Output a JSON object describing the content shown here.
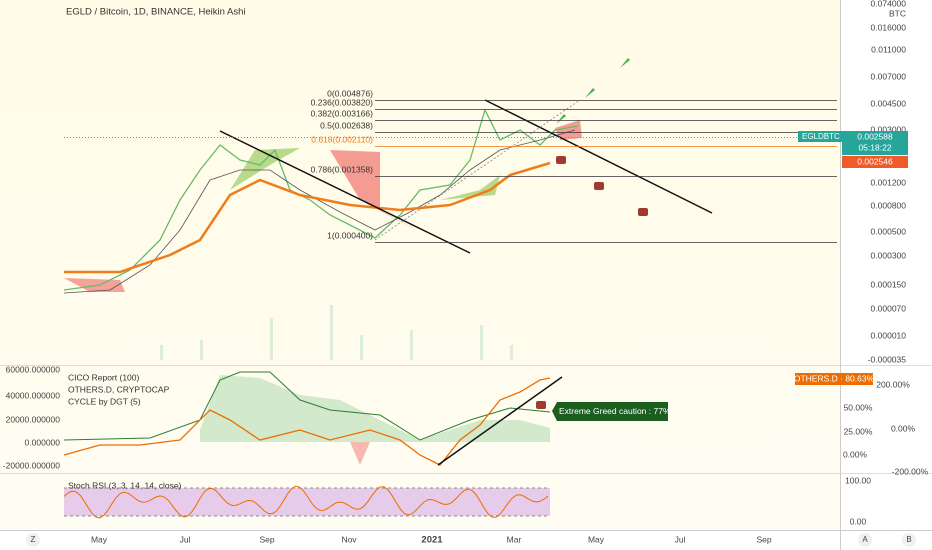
{
  "header": {
    "title": "EGLD / Bitcoin, 1D, BINANCE, Heikin Ashi"
  },
  "price_axis": {
    "labels": [
      "0.074000",
      "BTC",
      "0.016000",
      "0.011000",
      "0.007000",
      "0.004500",
      "0.003000",
      "0.001200",
      "0.000800",
      "0.000500",
      "0.000300",
      "0.000150",
      "0.000070",
      "0.000010",
      "-0.000035"
    ]
  },
  "tags": {
    "symbol": "EGLDBTC",
    "price": "0.002588",
    "countdown": "05:18:22",
    "ma": "0.002546",
    "others": "OTHERS.D · 80.63%",
    "caution": "Extreme Greed caution : 77%"
  },
  "fib_levels": [
    "0(0.004876)",
    "0.236(0.003820)",
    "0.382(0.003166)",
    "0.5(0.002638)",
    "0.618(0.002110)",
    "0.786(0.001358)",
    "1(0.000400)"
  ],
  "indicator": {
    "legend": [
      "CICO Report (100)",
      "OTHERS.D, CRYPTOCAP",
      "CYCLE by DGT (5)"
    ],
    "left_axis": [
      "60000.000000",
      "40000.000000",
      "20000.000000",
      "0.000000",
      "-20000.000000"
    ],
    "right_axis": [
      "200.00%",
      "50.00%",
      "25.00%",
      "0.00%",
      "0.00%",
      "-200.00%"
    ]
  },
  "stoch": {
    "legend": "Stoch RSI (3, 3, 14, 14, close)",
    "axis": [
      "100.00",
      "0.00"
    ]
  },
  "time_axis": [
    "May",
    "Jul",
    "Sep",
    "Nov",
    "2021",
    "Mar",
    "May",
    "Jul",
    "Sep"
  ],
  "corners": [
    "Z",
    "A",
    "B"
  ]
}
